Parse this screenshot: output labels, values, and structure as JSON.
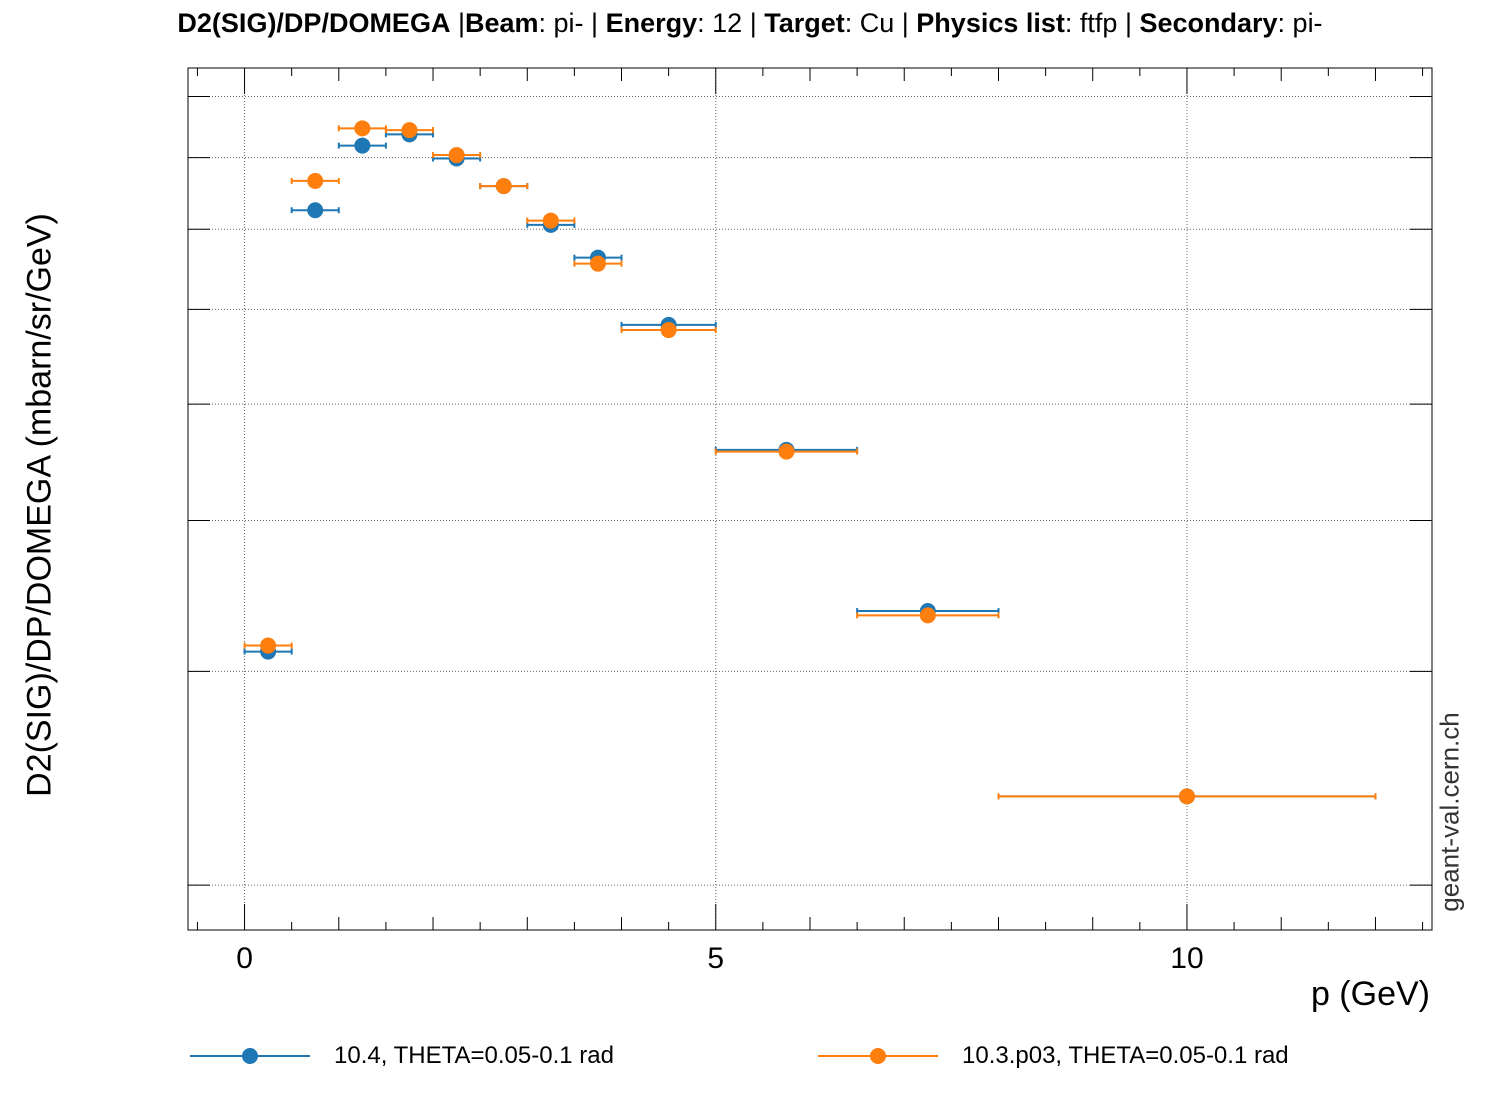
{
  "header": {
    "quantity": "D2(SIG)/DP/DOMEGA",
    "beam_label": "Beam",
    "beam": "pi-",
    "energy_label": "Energy",
    "energy": "12",
    "target_label": "Target",
    "target": "Cu",
    "physics_list_label": "Physics list",
    "physics_list": "ftfp",
    "secondary_label": "Secondary",
    "secondary": "pi-"
  },
  "watermark": "geant-val.cern.ch",
  "chart_data": {
    "type": "scatter",
    "title": "D2(SIG)/DP/DOMEGA |Beam: pi- | Energy: 12 | Target: Cu | Physics list: ftfp | Secondary: pi-",
    "xlabel": "p (GeV)",
    "ylabel": "D2(SIG)/DP/DOMEGA (mbarn/sr/GeV)",
    "xlim": [
      -0.6,
      12.6
    ],
    "x_ticks": [
      0,
      5,
      10
    ],
    "ylim": [
      0,
      1
    ],
    "y_tick_labels_shown": false,
    "grid": true,
    "legend_position": "bottom",
    "series": [
      {
        "name": "10.4, THETA=0.05-0.1 rad",
        "color": "#1f77b4",
        "points": [
          {
            "x": 0.25,
            "xlo": 0.0,
            "xhi": 0.5,
            "y": 0.323
          },
          {
            "x": 0.75,
            "xlo": 0.5,
            "xhi": 1.0,
            "y": 0.835
          },
          {
            "x": 1.25,
            "xlo": 1.0,
            "xhi": 1.5,
            "y": 0.91
          },
          {
            "x": 1.75,
            "xlo": 1.5,
            "xhi": 2.0,
            "y": 0.923
          },
          {
            "x": 2.25,
            "xlo": 2.0,
            "xhi": 2.5,
            "y": 0.895
          },
          {
            "x": 2.75,
            "xlo": 2.5,
            "xhi": 3.0,
            "y": 0.863
          },
          {
            "x": 3.25,
            "xlo": 3.0,
            "xhi": 3.5,
            "y": 0.818
          },
          {
            "x": 3.75,
            "xlo": 3.5,
            "xhi": 4.0,
            "y": 0.78
          },
          {
            "x": 4.5,
            "xlo": 4.0,
            "xhi": 5.0,
            "y": 0.702
          },
          {
            "x": 5.75,
            "xlo": 5.0,
            "xhi": 6.5,
            "y": 0.557
          },
          {
            "x": 7.25,
            "xlo": 6.5,
            "xhi": 8.0,
            "y": 0.37
          },
          {
            "x": 10.0,
            "xlo": 8.0,
            "xhi": 12.0,
            "y": 0.155
          }
        ]
      },
      {
        "name": "10.3.p03, THETA=0.05-0.1 rad",
        "color": "#ff7f0e",
        "points": [
          {
            "x": 0.25,
            "xlo": 0.0,
            "xhi": 0.5,
            "y": 0.33
          },
          {
            "x": 0.75,
            "xlo": 0.5,
            "xhi": 1.0,
            "y": 0.869
          },
          {
            "x": 1.25,
            "xlo": 1.0,
            "xhi": 1.5,
            "y": 0.93
          },
          {
            "x": 1.75,
            "xlo": 1.5,
            "xhi": 2.0,
            "y": 0.928
          },
          {
            "x": 2.25,
            "xlo": 2.0,
            "xhi": 2.5,
            "y": 0.899
          },
          {
            "x": 2.75,
            "xlo": 2.5,
            "xhi": 3.0,
            "y": 0.863
          },
          {
            "x": 3.25,
            "xlo": 3.0,
            "xhi": 3.5,
            "y": 0.823
          },
          {
            "x": 3.75,
            "xlo": 3.5,
            "xhi": 4.0,
            "y": 0.773
          },
          {
            "x": 4.5,
            "xlo": 4.0,
            "xhi": 5.0,
            "y": 0.696
          },
          {
            "x": 5.75,
            "xlo": 5.0,
            "xhi": 6.5,
            "y": 0.555
          },
          {
            "x": 7.25,
            "xlo": 6.5,
            "xhi": 8.0,
            "y": 0.365
          },
          {
            "x": 10.0,
            "xlo": 8.0,
            "xhi": 12.0,
            "y": 0.155
          }
        ]
      }
    ]
  }
}
